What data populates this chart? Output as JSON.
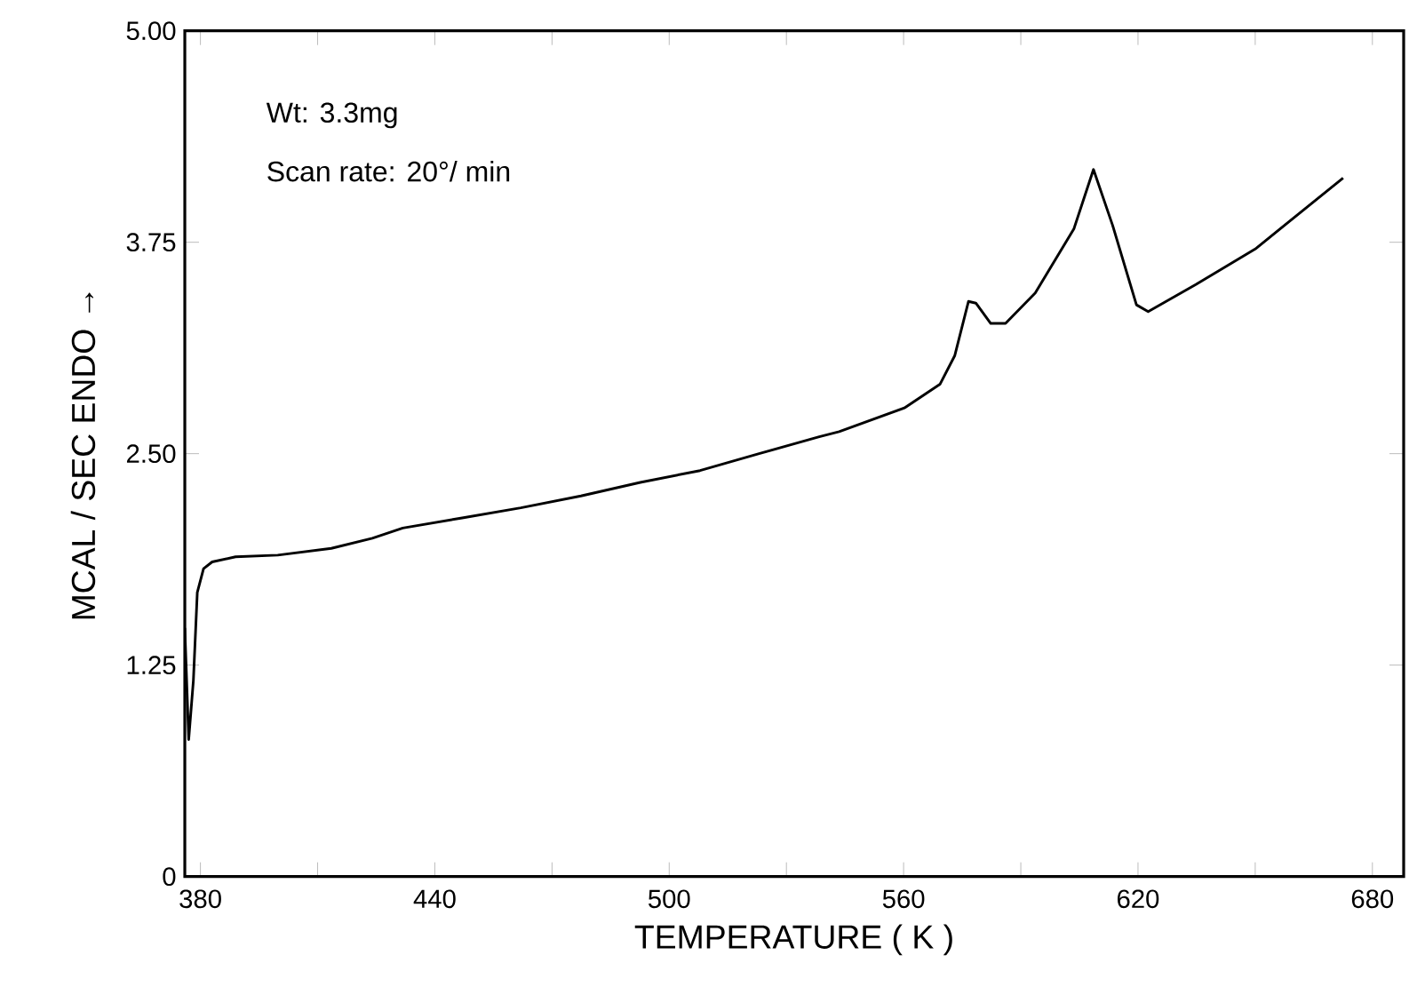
{
  "chart_data": {
    "type": "line",
    "xlabel": "TEMPERATURE  ( K )",
    "ylabel": "MCAL / SEC   ENDO →",
    "annotations": [
      "Wt: 3.3mg",
      "Scan rate: 20°/ min"
    ],
    "xlim": [
      376,
      688
    ],
    "ylim": [
      0,
      5
    ],
    "xticks": [
      380,
      {
        "value": 410,
        "label": null
      },
      440,
      {
        "value": 470,
        "label": null
      },
      500,
      {
        "value": 530,
        "label": null
      },
      560,
      {
        "value": 590,
        "label": null
      },
      620,
      {
        "value": 650,
        "label": null
      },
      680
    ],
    "yticks": [
      0,
      1.25,
      {
        "value": 2.5,
        "label": "2.50"
      },
      3.75,
      {
        "value": 5,
        "label": "5.00"
      }
    ],
    "marker": "none",
    "line_style": "solid",
    "series": [
      {
        "color": "#000000",
        "x": [
          376,
          377,
          378.2,
          379.2,
          380.8,
          383,
          389,
          399.8,
          413.5,
          424,
          431.8,
          447,
          462,
          477.4,
          492.6,
          507.9,
          523,
          538.4,
          543.5,
          560.2,
          569.3,
          573.1,
          576.6,
          578.5,
          582.3,
          586.1,
          593.7,
          603.6,
          608.6,
          613.5,
          619.6,
          622.6,
          634.8,
          650,
          672.5
        ],
        "values": [
          1.47,
          0.81,
          1.16,
          1.68,
          1.82,
          1.86,
          1.89,
          1.9,
          1.94,
          2.0,
          2.06,
          2.12,
          2.18,
          2.25,
          2.33,
          2.4,
          2.5,
          2.6,
          2.63,
          2.77,
          2.91,
          3.08,
          3.4,
          3.39,
          3.27,
          3.27,
          3.45,
          3.83,
          4.18,
          3.85,
          3.38,
          3.34,
          3.5,
          3.71,
          4.13
        ]
      }
    ]
  }
}
